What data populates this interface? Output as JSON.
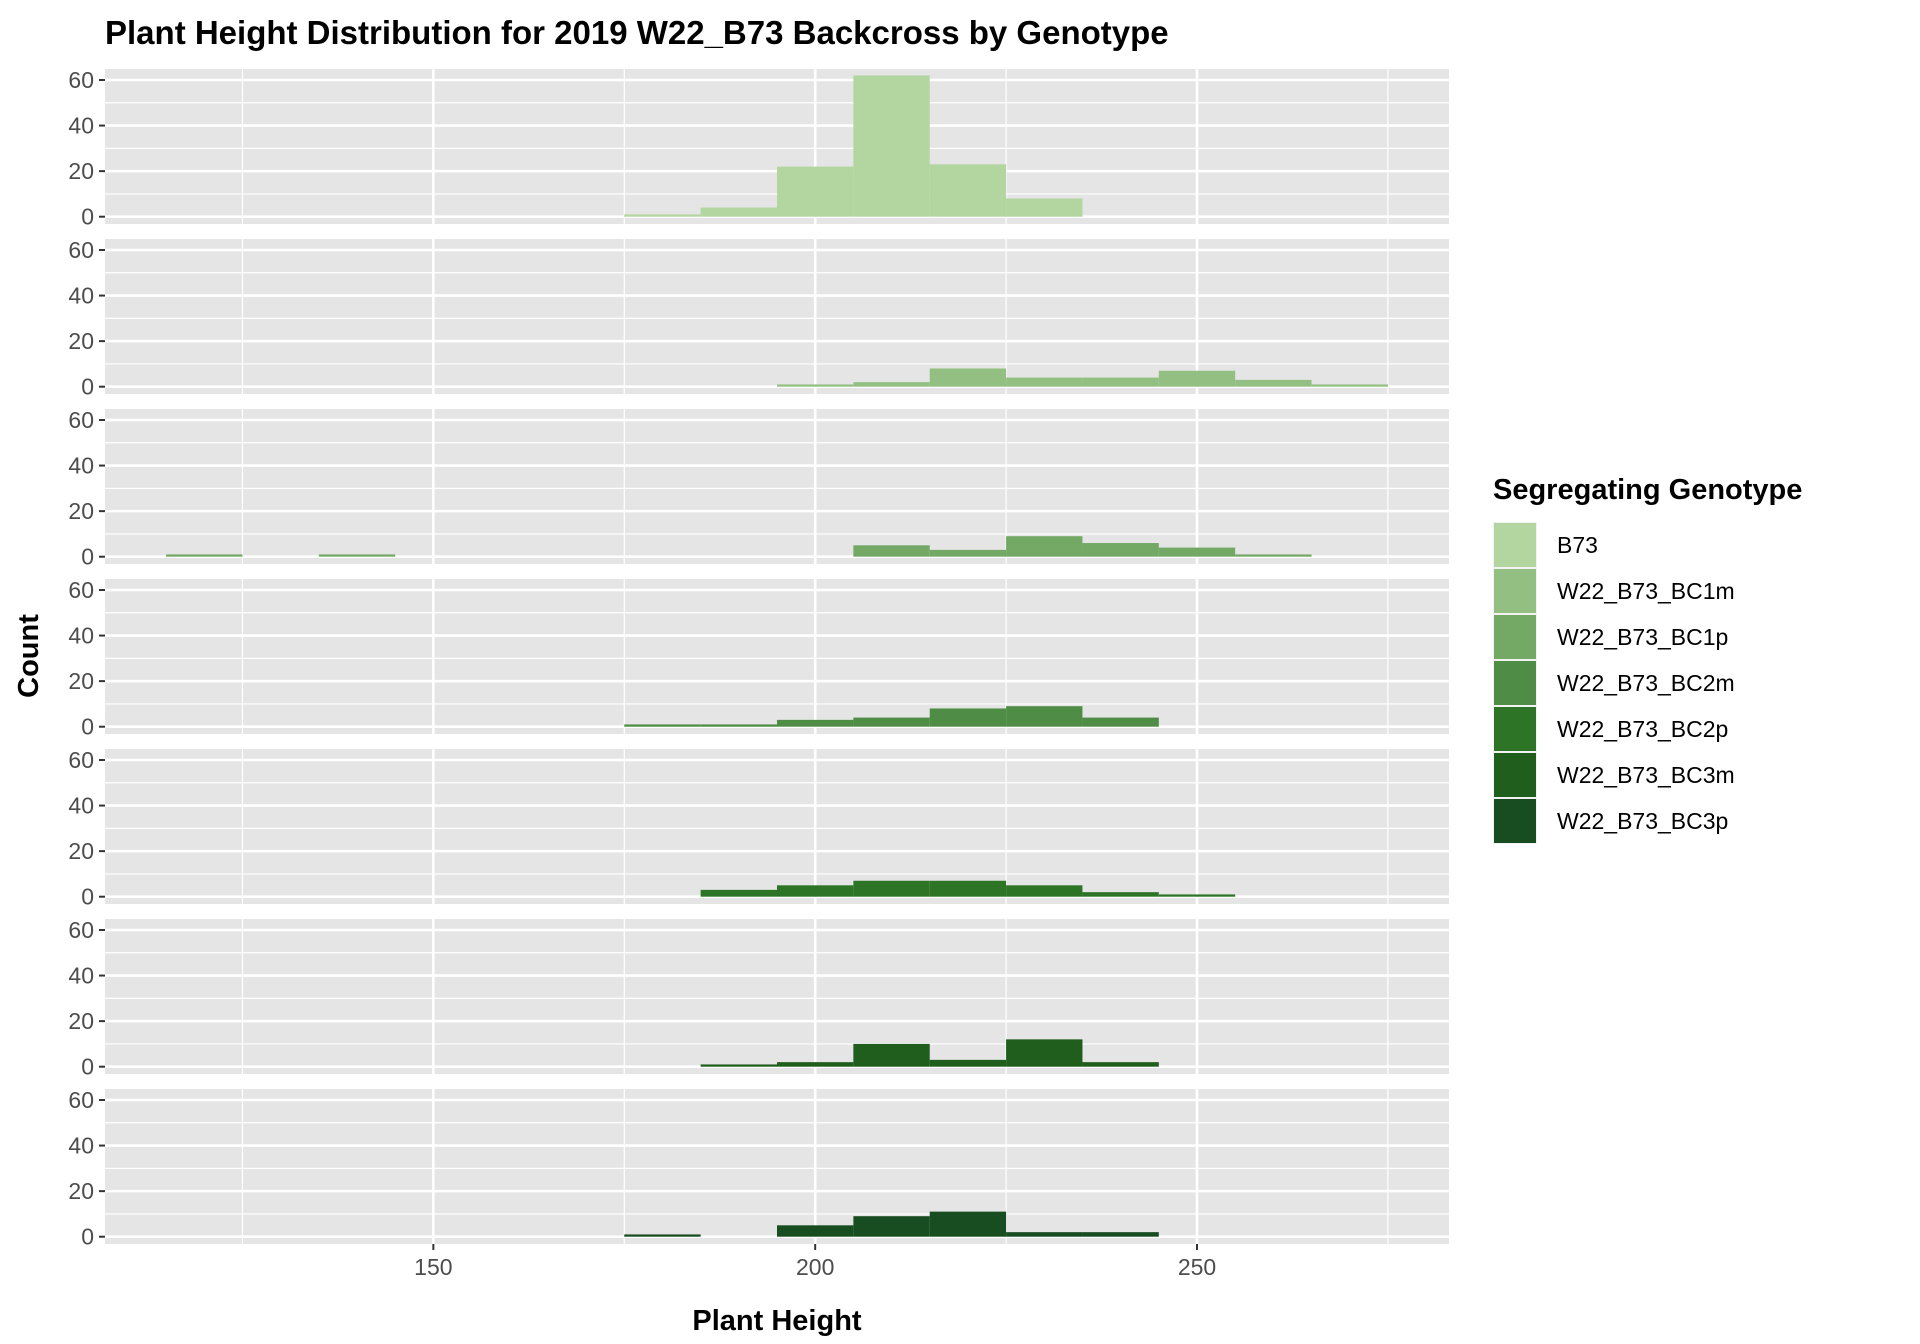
{
  "chart_data": {
    "type": "bar",
    "subtype": "faceted-histogram",
    "title": "Plant Height Distribution for 2019 W22_B73 Backcross by Genotype",
    "xlabel": "Plant Height",
    "ylabel": "Count",
    "xlim": [
      107,
      283
    ],
    "ylim": [
      0,
      64
    ],
    "x_ticks": [
      150,
      200,
      250
    ],
    "x_minor_gridlines": [
      125,
      175,
      225,
      275
    ],
    "y_ticks": [
      0,
      20,
      40,
      60
    ],
    "bin_width": 10,
    "grid": true,
    "legend": {
      "title": "Segregating Genotype",
      "position": "right"
    },
    "series": [
      {
        "name": "B73",
        "color": "#b3d5a0",
        "bins": [
          {
            "x0": 175,
            "x1": 185,
            "count": 1
          },
          {
            "x0": 185,
            "x1": 195,
            "count": 4
          },
          {
            "x0": 195,
            "x1": 205,
            "count": 22
          },
          {
            "x0": 205,
            "x1": 215,
            "count": 62
          },
          {
            "x0": 215,
            "x1": 225,
            "count": 23
          },
          {
            "x0": 225,
            "x1": 235,
            "count": 8
          }
        ]
      },
      {
        "name": "W22_B73_BC1m",
        "color": "#93c082",
        "bins": [
          {
            "x0": 195,
            "x1": 205,
            "count": 1
          },
          {
            "x0": 205,
            "x1": 215,
            "count": 2
          },
          {
            "x0": 215,
            "x1": 225,
            "count": 8
          },
          {
            "x0": 225,
            "x1": 235,
            "count": 4
          },
          {
            "x0": 235,
            "x1": 245,
            "count": 4
          },
          {
            "x0": 245,
            "x1": 255,
            "count": 7
          },
          {
            "x0": 255,
            "x1": 265,
            "count": 3
          },
          {
            "x0": 265,
            "x1": 275,
            "count": 1
          }
        ]
      },
      {
        "name": "W22_B73_BC1p",
        "color": "#73a865",
        "bins": [
          {
            "x0": 115,
            "x1": 125,
            "count": 1
          },
          {
            "x0": 135,
            "x1": 145,
            "count": 1
          },
          {
            "x0": 205,
            "x1": 215,
            "count": 5
          },
          {
            "x0": 215,
            "x1": 225,
            "count": 3
          },
          {
            "x0": 225,
            "x1": 235,
            "count": 9
          },
          {
            "x0": 235,
            "x1": 245,
            "count": 6
          },
          {
            "x0": 245,
            "x1": 255,
            "count": 4
          },
          {
            "x0": 255,
            "x1": 265,
            "count": 1
          }
        ]
      },
      {
        "name": "W22_B73_BC2m",
        "color": "#4f8c46",
        "bins": [
          {
            "x0": 175,
            "x1": 185,
            "count": 1
          },
          {
            "x0": 185,
            "x1": 195,
            "count": 1
          },
          {
            "x0": 195,
            "x1": 205,
            "count": 3
          },
          {
            "x0": 205,
            "x1": 215,
            "count": 4
          },
          {
            "x0": 215,
            "x1": 225,
            "count": 8
          },
          {
            "x0": 225,
            "x1": 235,
            "count": 9
          },
          {
            "x0": 235,
            "x1": 245,
            "count": 4
          }
        ]
      },
      {
        "name": "W22_B73_BC2p",
        "color": "#2e7427",
        "bins": [
          {
            "x0": 185,
            "x1": 195,
            "count": 3
          },
          {
            "x0": 195,
            "x1": 205,
            "count": 5
          },
          {
            "x0": 205,
            "x1": 215,
            "count": 7
          },
          {
            "x0": 215,
            "x1": 225,
            "count": 7
          },
          {
            "x0": 225,
            "x1": 235,
            "count": 5
          },
          {
            "x0": 235,
            "x1": 245,
            "count": 2
          },
          {
            "x0": 245,
            "x1": 255,
            "count": 1
          }
        ]
      },
      {
        "name": "W22_B73_BC3m",
        "color": "#1f5e1d",
        "bins": [
          {
            "x0": 185,
            "x1": 195,
            "count": 1
          },
          {
            "x0": 195,
            "x1": 205,
            "count": 2
          },
          {
            "x0": 205,
            "x1": 215,
            "count": 10
          },
          {
            "x0": 215,
            "x1": 225,
            "count": 3
          },
          {
            "x0": 225,
            "x1": 235,
            "count": 12
          },
          {
            "x0": 235,
            "x1": 245,
            "count": 2
          }
        ]
      },
      {
        "name": "W22_B73_BC3p",
        "color": "#174d20",
        "bins": [
          {
            "x0": 175,
            "x1": 185,
            "count": 1
          },
          {
            "x0": 195,
            "x1": 205,
            "count": 5
          },
          {
            "x0": 205,
            "x1": 215,
            "count": 9
          },
          {
            "x0": 215,
            "x1": 225,
            "count": 11
          },
          {
            "x0": 225,
            "x1": 235,
            "count": 2
          },
          {
            "x0": 235,
            "x1": 245,
            "count": 2
          }
        ]
      }
    ]
  },
  "colors": {
    "panel_background": "#e5e5e5",
    "grid_line": "#ffffff",
    "tick_text": "#4d4d4d",
    "tick_mark": "#333333"
  }
}
